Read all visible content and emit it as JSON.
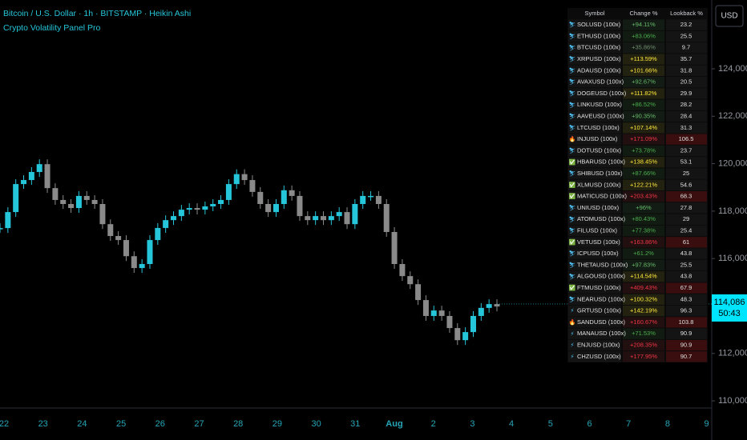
{
  "header": {
    "title": "Bitcoin / U.S. Dollar · 1h · BITSTAMP · Heikin Ashi",
    "indicator": "Crypto Volatility Panel Pro",
    "currency": "USD"
  },
  "chart": {
    "ylim": [
      109700,
      126900
    ],
    "yticks": [
      {
        "value": 124000,
        "label": "124,000"
      },
      {
        "value": 122000,
        "label": "122,000"
      },
      {
        "value": 120000,
        "label": "120,000"
      },
      {
        "value": 118000,
        "label": "118,000"
      },
      {
        "value": 116000,
        "label": "116,000"
      },
      {
        "value": 112000,
        "label": "112,000"
      },
      {
        "value": 110000,
        "label": "110,000"
      }
    ],
    "xticks": [
      "22",
      "23",
      "24",
      "25",
      "26",
      "27",
      "28",
      "29",
      "30",
      "31",
      "Aug",
      "2",
      "3",
      "4",
      "5",
      "6",
      "7",
      "8",
      "9"
    ],
    "prices": [
      117285,
      117960,
      119140,
      119310,
      119650,
      119980,
      118970,
      118470,
      118300,
      118130,
      118640,
      118470,
      118300,
      117450,
      116950,
      116780,
      116100,
      115600,
      115770,
      116780,
      117290,
      117620,
      117790,
      118060,
      118130,
      118060,
      118200,
      118300,
      118470,
      119140,
      119560,
      119310,
      118810,
      118300,
      117960,
      118300,
      118880,
      118640,
      117790,
      117620,
      117790,
      117620,
      117790,
      117960,
      117450,
      118300,
      118640,
      118640,
      118300,
      117120,
      115770,
      115260,
      114920,
      114250,
      113580,
      113810,
      113580,
      113070,
      112560,
      112900,
      113580,
      113920,
      114080,
      113980
    ],
    "up_color": "#26c6da",
    "down_color": "#8a8a8a",
    "last_price": {
      "value": 114086,
      "label": "114,086"
    },
    "countdown": "50:43"
  },
  "table": {
    "headers": [
      "Symbol",
      "Change %",
      "Lookback %"
    ],
    "rows": [
      {
        "icon": "⛷",
        "symbol": "SOLUSD (100x)",
        "change": "+94.11%",
        "lookback": "23.2",
        "color": "#66bb6a"
      },
      {
        "icon": "⛷",
        "symbol": "ETHUSD (100x)",
        "change": "+83.06%",
        "lookback": "25.5",
        "color": "#4caf50"
      },
      {
        "icon": "⛷",
        "symbol": "BTCUSD (100x)",
        "change": "+35.86%",
        "lookback": "9.7",
        "color": "#6f8f6f"
      },
      {
        "icon": "⛷",
        "symbol": "XRPUSD (100x)",
        "change": "+113.59%",
        "lookback": "35.7",
        "color": "#ffeb3b"
      },
      {
        "icon": "⛷",
        "symbol": "ADAUSD (100x)",
        "change": "+101.66%",
        "lookback": "31.8",
        "color": "#ffeb3b"
      },
      {
        "icon": "⛷",
        "symbol": "AVAXUSD (100x)",
        "change": "+92.67%",
        "lookback": "20.5",
        "color": "#66bb6a"
      },
      {
        "icon": "⛷",
        "symbol": "DOGEUSD (100x)",
        "change": "+111.82%",
        "lookback": "29.9",
        "color": "#ffeb3b"
      },
      {
        "icon": "⛷",
        "symbol": "LINKUSD (100x)",
        "change": "+86.52%",
        "lookback": "28.2",
        "color": "#4caf50"
      },
      {
        "icon": "⛷",
        "symbol": "AAVEUSD (100x)",
        "change": "+90.35%",
        "lookback": "28.4",
        "color": "#66bb6a"
      },
      {
        "icon": "⛷",
        "symbol": "LTCUSD (100x)",
        "change": "+107.14%",
        "lookback": "31.3",
        "color": "#ffeb3b"
      },
      {
        "icon": "🔥",
        "symbol": "INJUSD (100x)",
        "change": "+171.09%",
        "lookback": "106.5",
        "color": "#f23645"
      },
      {
        "icon": "⛷",
        "symbol": "DOTUSD (100x)",
        "change": "+73.78%",
        "lookback": "23.7",
        "color": "#4caf50"
      },
      {
        "icon": "✅",
        "symbol": "HBARUSD (100x)",
        "change": "+138.45%",
        "lookback": "53.1",
        "color": "#ffeb3b"
      },
      {
        "icon": "⛷",
        "symbol": "SHIBUSD (100x)",
        "change": "+87.66%",
        "lookback": "25",
        "color": "#4caf50"
      },
      {
        "icon": "✅",
        "symbol": "XLMUSD (100x)",
        "change": "+122.21%",
        "lookback": "54.6",
        "color": "#ffeb3b"
      },
      {
        "icon": "✅",
        "symbol": "MATICUSD (100x)",
        "change": "+203.43%",
        "lookback": "68.3",
        "color": "#f23645"
      },
      {
        "icon": "⛷",
        "symbol": "UNIUSD (100x)",
        "change": "+96%",
        "lookback": "27.8",
        "color": "#66bb6a"
      },
      {
        "icon": "⛷",
        "symbol": "ATOMUSD (100x)",
        "change": "+80.43%",
        "lookback": "29",
        "color": "#4caf50"
      },
      {
        "icon": "⛷",
        "symbol": "FILUSD (100x)",
        "change": "+77.38%",
        "lookback": "25.4",
        "color": "#4caf50"
      },
      {
        "icon": "✅",
        "symbol": "VETUSD (100x)",
        "change": "+163.86%",
        "lookback": "61",
        "color": "#f23645"
      },
      {
        "icon": "⛷",
        "symbol": "ICPUSD (100x)",
        "change": "+61.2%",
        "lookback": "43.8",
        "color": "#4caf50"
      },
      {
        "icon": "⛷",
        "symbol": "THETAUSD (100x)",
        "change": "+97.83%",
        "lookback": "25.5",
        "color": "#66bb6a"
      },
      {
        "icon": "⛷",
        "symbol": "ALGOUSD (100x)",
        "change": "+114.54%",
        "lookback": "43.8",
        "color": "#ffeb3b"
      },
      {
        "icon": "✅",
        "symbol": "FTMUSD (100x)",
        "change": "+409.43%",
        "lookback": "67.9",
        "color": "#f23645"
      },
      {
        "icon": "⛷",
        "symbol": "NEARUSD (100x)",
        "change": "+100.32%",
        "lookback": "48.3",
        "color": "#ffeb3b"
      },
      {
        "icon": "⚡",
        "symbol": "GRTUSD (100x)",
        "change": "+142.19%",
        "lookback": "96.3",
        "color": "#ffeb3b"
      },
      {
        "icon": "🔥",
        "symbol": "SANDUSD (100x)",
        "change": "+160.67%",
        "lookback": "103.8",
        "color": "#f23645"
      },
      {
        "icon": "⚡",
        "symbol": "MANAUSD (100x)",
        "change": "+71.53%",
        "lookback": "90.9",
        "color": "#4caf50"
      },
      {
        "icon": "⚡",
        "symbol": "ENJUSD (100x)",
        "change": "+208.35%",
        "lookback": "90.9",
        "color": "#f23645"
      },
      {
        "icon": "⚡",
        "symbol": "CHZUSD (100x)",
        "change": "+177.95%",
        "lookback": "90.7",
        "color": "#f23645"
      }
    ]
  }
}
